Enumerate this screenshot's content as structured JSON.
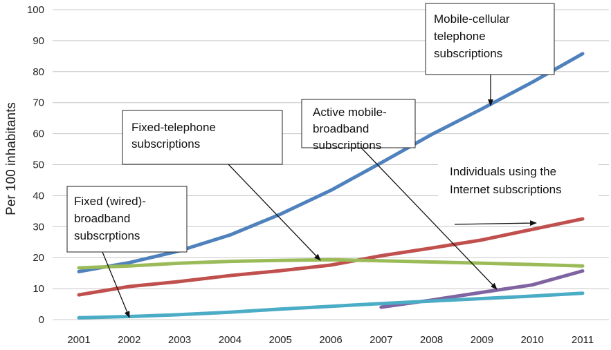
{
  "chart_data": {
    "type": "line",
    "title": "",
    "xlabel": "",
    "ylabel": "Per 100 inhabitants",
    "ylim": [
      0,
      100
    ],
    "yticks": [
      0,
      10,
      20,
      30,
      40,
      50,
      60,
      70,
      80,
      90,
      100
    ],
    "grid": true,
    "x": [
      "2001",
      "2002",
      "2003",
      "2004",
      "2005",
      "2006",
      "2007",
      "2008",
      "2009",
      "2010",
      "2011"
    ],
    "series": [
      {
        "id": "mobile",
        "color": "#4f81bd",
        "x": [
          "2001",
          "2002",
          "2003",
          "2004",
          "2005",
          "2006",
          "2007",
          "2008",
          "2009",
          "2010",
          "2011"
        ],
        "values": [
          15.5,
          18.4,
          22.2,
          27.3,
          34.0,
          41.7,
          50.6,
          59.7,
          68.0,
          76.6,
          85.8
        ]
      },
      {
        "id": "internet",
        "color": "#c0504d",
        "x": [
          "2001",
          "2002",
          "2003",
          "2004",
          "2005",
          "2006",
          "2007",
          "2008",
          "2009",
          "2010",
          "2011"
        ],
        "values": [
          8.0,
          10.7,
          12.3,
          14.2,
          15.8,
          17.6,
          20.6,
          23.1,
          25.7,
          29.1,
          32.5
        ]
      },
      {
        "id": "fixed_tel",
        "color": "#9bbb59",
        "x": [
          "2001",
          "2002",
          "2003",
          "2004",
          "2005",
          "2006",
          "2007",
          "2008",
          "2009",
          "2010",
          "2011"
        ],
        "values": [
          16.7,
          17.3,
          18.2,
          18.8,
          19.1,
          19.3,
          19.0,
          18.6,
          18.2,
          17.8,
          17.3
        ]
      },
      {
        "id": "mobile_bb",
        "color": "#8064a2",
        "x": [
          "2007",
          "2008",
          "2009",
          "2010",
          "2011"
        ],
        "values": [
          4.0,
          6.3,
          8.8,
          11.2,
          15.7
        ]
      },
      {
        "id": "fixed_bb",
        "color": "#4bacc6",
        "x": [
          "2001",
          "2002",
          "2003",
          "2004",
          "2005",
          "2006",
          "2007",
          "2008",
          "2009",
          "2010",
          "2011"
        ],
        "values": [
          0.6,
          1.0,
          1.6,
          2.4,
          3.4,
          4.3,
          5.2,
          6.0,
          6.8,
          7.6,
          8.5
        ]
      }
    ],
    "annotations": [
      {
        "id": "mobile",
        "text": [
          "Mobile-cellular",
          "telephone",
          "subscriptions"
        ],
        "border": true
      },
      {
        "id": "mobile_bb",
        "text": [
          "Active mobile-",
          "broadband",
          "subscriptions"
        ],
        "border": true
      },
      {
        "id": "fixed_tel",
        "text": [
          "Fixed-telephone",
          "subscriptions"
        ],
        "border": true
      },
      {
        "id": "internet",
        "text": [
          "Individuals using the",
          "Internet subscriptions"
        ],
        "border": false
      },
      {
        "id": "fixed_bb",
        "text": [
          "Fixed (wired)-",
          "broadband",
          "subscrptions"
        ],
        "border": true
      }
    ]
  }
}
